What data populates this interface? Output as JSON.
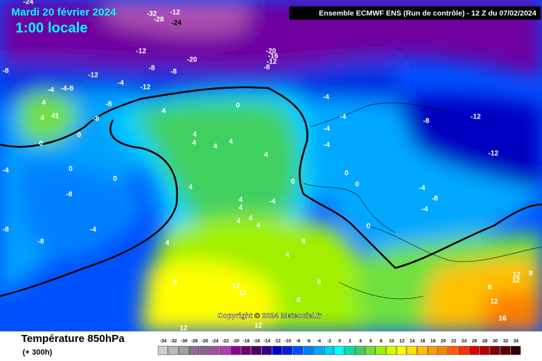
{
  "header": {
    "date": "Mardi 20 février 2024",
    "time": "1:00 locale",
    "run": "Ensemble ECMWF ENS  (Run de contrôle)  -  12 Z du 07/02/2024",
    "copyright": "Copyright © 2024 Meteociel.fr"
  },
  "map": {
    "labels": [
      "-24",
      "-32",
      "-28",
      "-12",
      "-24",
      "-8",
      "-12",
      "-12",
      "-8",
      "-8",
      "-20",
      "-20",
      "-16",
      "-12",
      "-8",
      "-12",
      "-4",
      "-4-8",
      "-4",
      "-8",
      "4",
      "4",
      "41",
      "-8",
      "0",
      "0",
      "0",
      "4",
      "4",
      "4",
      "4",
      "4",
      "4",
      "0",
      "0",
      "-4",
      "-8",
      "4",
      "4",
      "-4",
      "4",
      "4",
      "4",
      "4",
      "-8",
      "-4",
      "-8",
      "4",
      "-4",
      "-4",
      "-4",
      "-4",
      "0",
      "0",
      "0",
      "-8",
      "-12",
      "-12",
      "-4",
      "-8",
      "-4",
      "0",
      "8",
      "4",
      "8",
      "12",
      "12",
      "8",
      "8",
      "12",
      "12",
      "12",
      "12",
      "8",
      "8",
      "12",
      "16"
    ]
  },
  "legend": {
    "title": "Température 850hPa",
    "subtitle": "(+ 300h)",
    "ticks": [
      -34,
      -32,
      -30,
      -28,
      -26,
      -24,
      -22,
      -20,
      -18,
      -16,
      -14,
      -12,
      -10,
      -8,
      -6,
      -4,
      -2,
      0,
      2,
      4,
      6,
      8,
      10,
      12,
      14,
      16,
      18,
      20,
      22,
      24,
      26,
      28,
      30,
      32,
      34
    ],
    "colors": [
      "#d0d0d0",
      "#b8b8b8",
      "#a0a0a0",
      "#907090",
      "#906090",
      "#a050a0",
      "#b040b0",
      "#900090",
      "#700070",
      "#500060",
      "#300090",
      "#0000c0",
      "#0020e0",
      "#0050ff",
      "#0080ff",
      "#00a8ff",
      "#00d0ff",
      "#00ffff",
      "#00e0a0",
      "#40d060",
      "#70e040",
      "#a0f000",
      "#d0ff00",
      "#ffff00",
      "#ffe000",
      "#ffc000",
      "#ffa000",
      "#ff8000",
      "#ff6000",
      "#ff3000",
      "#e00000",
      "#b00000",
      "#800000",
      "#600000",
      "#300000"
    ]
  }
}
